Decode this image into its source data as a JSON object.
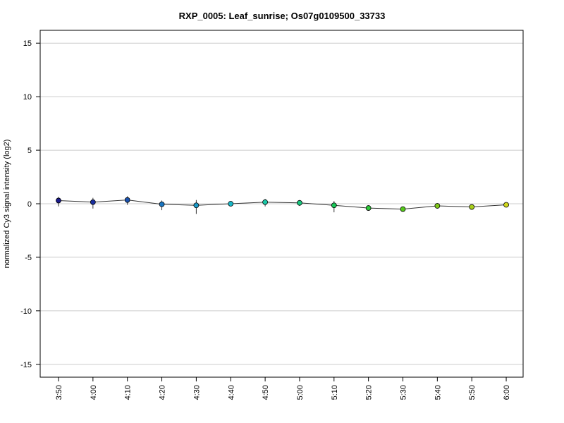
{
  "chart_data": {
    "type": "line",
    "title": "RXP_0005: Leaf_sunrise; Os07g0109500_33733",
    "xlabel": "",
    "ylabel": "normalized Cy3 signal intensity (log2)",
    "categories": [
      "3:50",
      "4:00",
      "4:10",
      "4:20",
      "4:30",
      "4:40",
      "4:50",
      "5:00",
      "5:10",
      "5:20",
      "5:30",
      "5:40",
      "5:50",
      "6:00"
    ],
    "series": [
      {
        "values": [
          0.3,
          0.15,
          0.35,
          -0.05,
          -0.15,
          0.0,
          0.15,
          0.08,
          -0.15,
          -0.4,
          -0.5,
          -0.2,
          -0.3,
          -0.1
        ],
        "error_low": [
          -0.25,
          -0.45,
          -0.1,
          -0.6,
          -0.95,
          0.0,
          -0.25,
          -0.2,
          -0.8,
          -0.4,
          -0.5,
          -0.45,
          -0.3,
          -0.1
        ],
        "error_high": [
          0.65,
          0.55,
          0.7,
          0.3,
          0.35,
          0.0,
          0.45,
          0.35,
          0.25,
          -0.4,
          -0.5,
          0.05,
          -0.3,
          -0.1
        ],
        "point_colors": [
          "#1a1a8c",
          "#1a2fa0",
          "#1a52b0",
          "#1a75c0",
          "#1a9ac8",
          "#1ab8c8",
          "#1ac8a8",
          "#1ac880",
          "#1ac858",
          "#2ec83a",
          "#55c81a",
          "#80c81a",
          "#a8d01a",
          "#d0d81a"
        ]
      }
    ],
    "yticks": [
      -15,
      -10,
      -5,
      0,
      5,
      10,
      15
    ],
    "ylim": [
      -16.2,
      16.2
    ],
    "grid": true,
    "line_color": "#333333"
  }
}
